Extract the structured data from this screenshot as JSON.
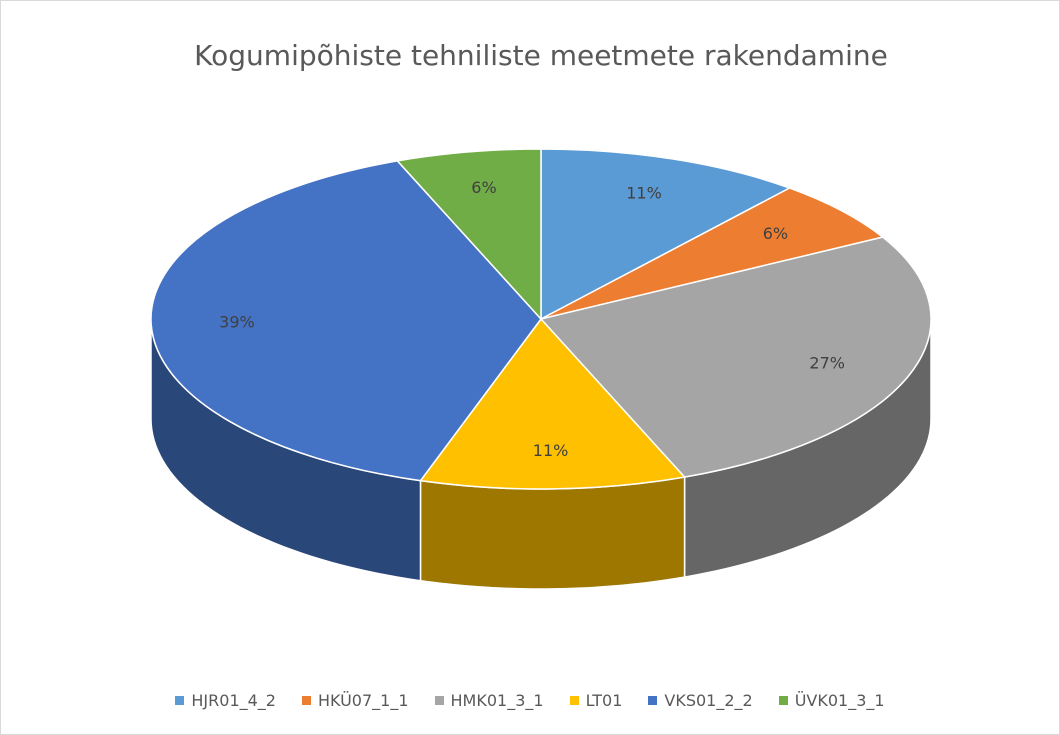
{
  "chart_data": {
    "type": "pie",
    "title": "Kogumipõhiste tehniliste meetmete rakendamine",
    "categories": [
      "HJR01_4_2",
      "HKÜ07_1_1",
      "HMK01_3_1",
      "LT01",
      "VKS01_2_2",
      "ÜVK01_3_1"
    ],
    "values": [
      11,
      6,
      27,
      11,
      39,
      6
    ],
    "value_labels": [
      "11%",
      "6%",
      "27%",
      "11%",
      "39%",
      "6%"
    ],
    "colors": [
      "#5b9bd5",
      "#ed7d31",
      "#a5a5a5",
      "#ffc000",
      "#4472c4",
      "#70ad47"
    ],
    "legend": "bottom"
  }
}
